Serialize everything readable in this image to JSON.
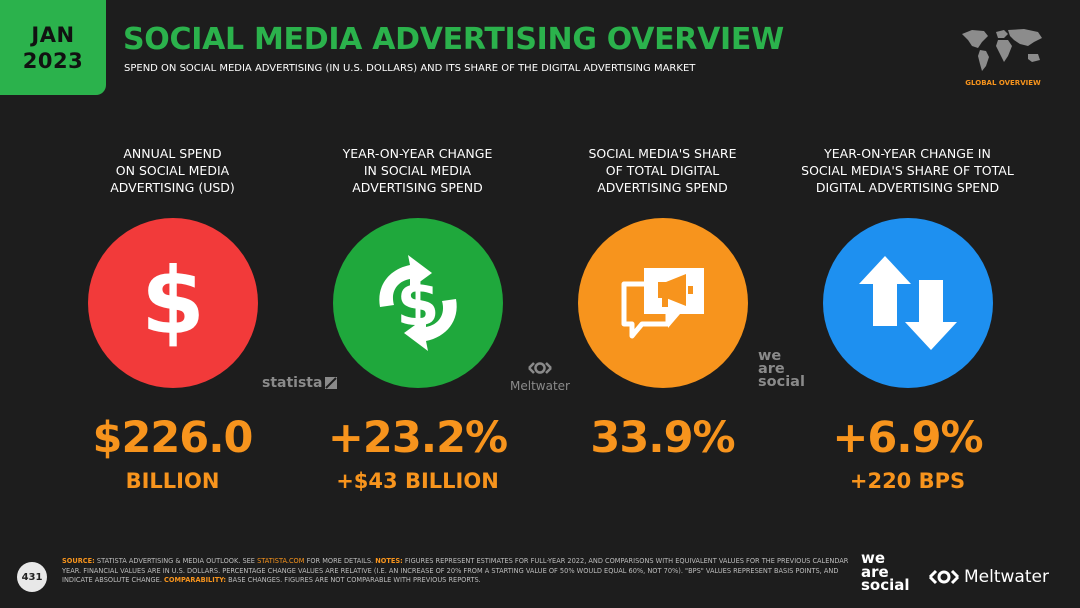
{
  "header": {
    "date_month": "JAN",
    "date_year": "2023",
    "title": "SOCIAL MEDIA ADVERTISING OVERVIEW",
    "subtitle": "SPEND ON SOCIAL MEDIA ADVERTISING (IN U.S. DOLLARS) AND ITS SHARE OF THE DIGITAL ADVERTISING MARKET",
    "map_label": "GLOBAL OVERVIEW"
  },
  "colors": {
    "accent_green": "#2bb24c",
    "accent_orange": "#f7941d",
    "red": "#f23a3a",
    "blue": "#1e90f0",
    "background": "#1d1d1d"
  },
  "stats": [
    {
      "heading": [
        "ANNUAL SPEND",
        "ON SOCIAL MEDIA",
        "ADVERTISING (USD)"
      ],
      "icon": "dollar-icon",
      "value": "$226.0",
      "sub": "BILLION"
    },
    {
      "heading": [
        "YEAR-ON-YEAR CHANGE",
        "IN SOCIAL MEDIA",
        "ADVERTISING SPEND"
      ],
      "icon": "dollar-cycle-icon",
      "value": "+23.2%",
      "sub": "+$43 BILLION"
    },
    {
      "heading": [
        "SOCIAL MEDIA'S SHARE",
        "OF TOTAL DIGITAL",
        "ADVERTISING SPEND"
      ],
      "icon": "megaphone-chat-icon",
      "value": "33.9%",
      "sub": ""
    },
    {
      "heading": [
        "YEAR-ON-YEAR CHANGE IN",
        "SOCIAL MEDIA'S SHARE OF TOTAL",
        "DIGITAL ADVERTISING SPEND"
      ],
      "icon": "up-down-arrows-icon",
      "value": "+6.9%",
      "sub": "+220 BPS"
    }
  ],
  "partners": {
    "statista": "statista",
    "meltwater": "Meltwater",
    "we": "we",
    "are": "are",
    "social": "social"
  },
  "footer": {
    "page_number": "431",
    "source_label": "SOURCE:",
    "source_text": "STATISTA ADVERTISING & MEDIA OUTLOOK. SEE",
    "source_link": "STATISTA.COM",
    "source_tail": "FOR MORE DETAILS.",
    "notes_label": "NOTES:",
    "notes_text": "FIGURES REPRESENT ESTIMATES FOR FULL-YEAR 2022, AND COMPARISONS WITH EQUIVALENT VALUES FOR THE PREVIOUS CALENDAR YEAR. FINANCIAL VALUES ARE IN U.S. DOLLARS. PERCENTAGE CHANGE VALUES ARE RELATIVE (I.E. AN INCREASE OF 20% FROM A STARTING VALUE OF 50% WOULD EQUAL 60%, NOT 70%). \"BPS\" VALUES REPRESENT BASIS POINTS, AND INDICATE ABSOLUTE CHANGE.",
    "comparability_label": "COMPARABILITY:",
    "comparability_text": "BASE CHANGES. FIGURES ARE NOT COMPARABLE WITH PREVIOUS REPORTS.",
    "brand_meltwater": "Meltwater"
  }
}
